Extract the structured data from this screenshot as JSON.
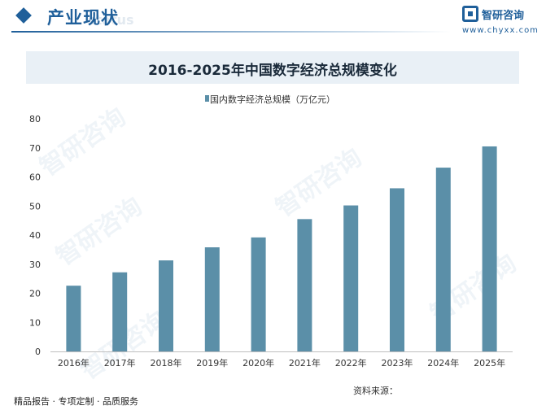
{
  "header": {
    "section_title": "产业现状",
    "watermark": "status",
    "logo_name": "智研咨询",
    "logo_url": "www.chyxx.com"
  },
  "footer": {
    "tagline": "精品报告 · 专项定制 · 品质服务",
    "source": "资料来源："
  },
  "colors": {
    "bar": "#5b8fa8",
    "accent": "#1f5f9a",
    "title_band": "#e9f0f6"
  },
  "chart_data": {
    "type": "bar",
    "title": "2016-2025年中国数字经济总规模变化",
    "categories": [
      "2016年",
      "2017年",
      "2018年",
      "2019年",
      "2020年",
      "2021年",
      "2022年",
      "2023年",
      "2024年",
      "2025年"
    ],
    "series": [
      {
        "name": "国内数字经济总规模（万亿元）",
        "values": [
          22.6,
          27.2,
          31.3,
          35.8,
          39.2,
          45.5,
          50.2,
          56.1,
          63.2,
          70.5
        ]
      }
    ],
    "ylim": [
      0,
      80
    ],
    "yticks": [
      0,
      10,
      20,
      30,
      40,
      50,
      60,
      70,
      80
    ],
    "grid": false,
    "legend_position": "top-center"
  }
}
